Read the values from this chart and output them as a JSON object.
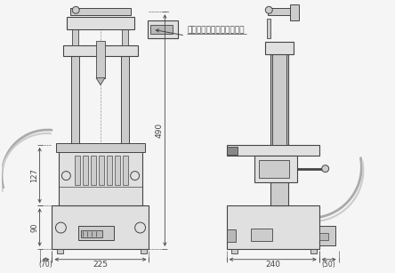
{
  "bg_color": "#f5f5f5",
  "line_color": "#444444",
  "dim_color": "#444444",
  "annotation_label": "カウンター（オプション）",
  "lc": "#444444",
  "fill_light": "#e0e0e0",
  "fill_mid": "#cccccc",
  "fill_dark": "#b8b8b8"
}
